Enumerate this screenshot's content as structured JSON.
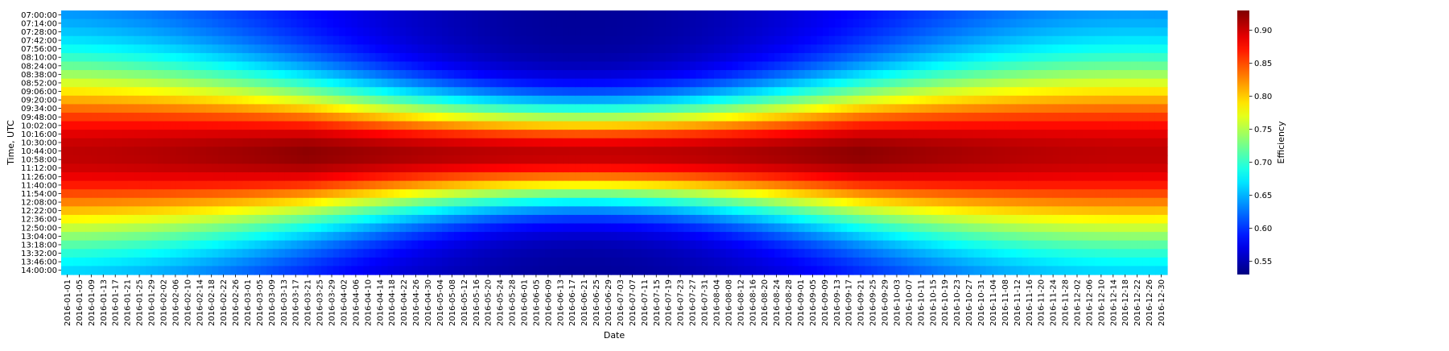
{
  "chart_data": {
    "type": "heatmap",
    "title": "",
    "xlabel": "Date",
    "ylabel": "Time, UTC",
    "colorbar_label": "Efficiency",
    "colormap": "jet",
    "value_range": [
      0.53,
      0.93
    ],
    "colorbar_ticks": [
      "0.55",
      "0.60",
      "0.65",
      "0.70",
      "0.75",
      "0.80",
      "0.85",
      "0.90"
    ],
    "x_tick_labels": [
      "2016-01-01",
      "2016-01-05",
      "2016-01-09",
      "2016-01-13",
      "2016-01-17",
      "2016-01-21",
      "2016-01-25",
      "2016-01-29",
      "2016-02-02",
      "2016-02-06",
      "2016-02-10",
      "2016-02-14",
      "2016-02-18",
      "2016-02-22",
      "2016-02-26",
      "2016-03-01",
      "2016-03-05",
      "2016-03-09",
      "2016-03-13",
      "2016-03-17",
      "2016-03-21",
      "2016-03-25",
      "2016-03-29",
      "2016-04-02",
      "2016-04-06",
      "2016-04-10",
      "2016-04-14",
      "2016-04-18",
      "2016-04-22",
      "2016-04-26",
      "2016-04-30",
      "2016-05-04",
      "2016-05-08",
      "2016-05-12",
      "2016-05-16",
      "2016-05-20",
      "2016-05-24",
      "2016-05-28",
      "2016-06-01",
      "2016-06-05",
      "2016-06-09",
      "2016-06-13",
      "2016-06-17",
      "2016-06-21",
      "2016-06-25",
      "2016-06-29",
      "2016-07-03",
      "2016-07-07",
      "2016-07-11",
      "2016-07-15",
      "2016-07-19",
      "2016-07-23",
      "2016-07-27",
      "2016-07-31",
      "2016-08-04",
      "2016-08-08",
      "2016-08-12",
      "2016-08-16",
      "2016-08-20",
      "2016-08-24",
      "2016-08-28",
      "2016-09-01",
      "2016-09-05",
      "2016-09-09",
      "2016-09-13",
      "2016-09-17",
      "2016-09-21",
      "2016-09-25",
      "2016-09-29",
      "2016-10-03",
      "2016-10-07",
      "2016-10-11",
      "2016-10-15",
      "2016-10-19",
      "2016-10-23",
      "2016-10-27",
      "2016-10-31",
      "2016-11-04",
      "2016-11-08",
      "2016-11-12",
      "2016-11-16",
      "2016-11-20",
      "2016-11-24",
      "2016-11-28",
      "2016-12-02",
      "2016-12-06",
      "2016-12-10",
      "2016-12-14",
      "2016-12-18",
      "2016-12-22",
      "2016-12-26",
      "2016-12-30"
    ],
    "y_tick_labels": [
      "07:00:00",
      "07:14:00",
      "07:28:00",
      "07:42:00",
      "07:56:00",
      "08:10:00",
      "08:24:00",
      "08:38:00",
      "08:52:00",
      "09:06:00",
      "09:20:00",
      "09:34:00",
      "09:48:00",
      "10:02:00",
      "10:16:00",
      "10:30:00",
      "10:44:00",
      "10:58:00",
      "11:12:00",
      "11:26:00",
      "11:40:00",
      "11:54:00",
      "12:08:00",
      "12:22:00",
      "12:36:00",
      "12:50:00",
      "13:04:00",
      "13:18:00",
      "13:32:00",
      "13:46:00",
      "14:00:00"
    ],
    "summary": {
      "min_value": 0.53,
      "max_value": 0.93,
      "peak_efficiency_time": "10:30:00",
      "lowest_efficiency_dates": "2016-06-13 to 2016-06-29",
      "lowest_efficiency_times": [
        "07:00:00",
        "14:00:00"
      ]
    }
  }
}
